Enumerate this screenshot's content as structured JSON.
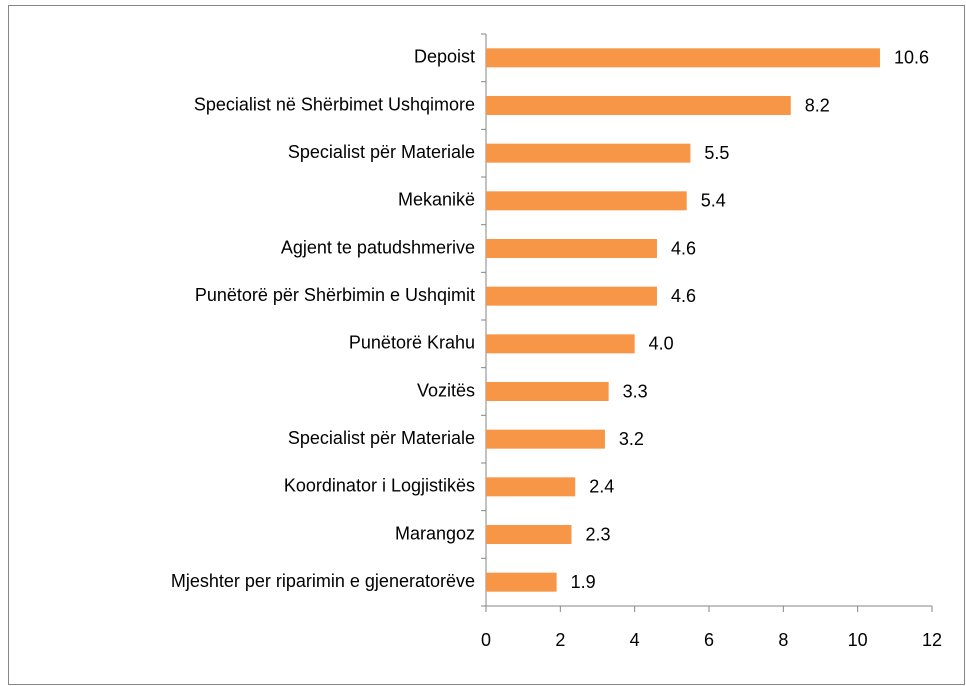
{
  "chart_data": {
    "type": "bar",
    "orientation": "horizontal",
    "categories": [
      "Depoist",
      "Specialist në Shërbimet Ushqimore",
      "Specialist për Materiale",
      "Mekanikë",
      "Agjent te patudshmerive",
      "Punëtorë për Shërbimin e Ushqimit",
      "Punëtorë Krahu",
      "Vozitës",
      "Specialist për Materiale",
      "Koordinator i Logjistikës",
      "Marangoz",
      "Mjeshter per riparimin e gjeneratorëve"
    ],
    "values": [
      10.6,
      8.2,
      5.5,
      5.4,
      4.6,
      4.6,
      4.0,
      3.3,
      3.2,
      2.4,
      2.3,
      1.9
    ],
    "value_labels": [
      "10.6",
      "8.2",
      "5.5",
      "5.4",
      "4.6",
      "4.6",
      "4.0",
      "3.3",
      "3.2",
      "2.4",
      "2.3",
      "1.9"
    ],
    "color": "#f79646",
    "xlim": [
      0,
      12
    ],
    "xticks": [
      0,
      2,
      4,
      6,
      8,
      10,
      12
    ],
    "grid": false
  }
}
